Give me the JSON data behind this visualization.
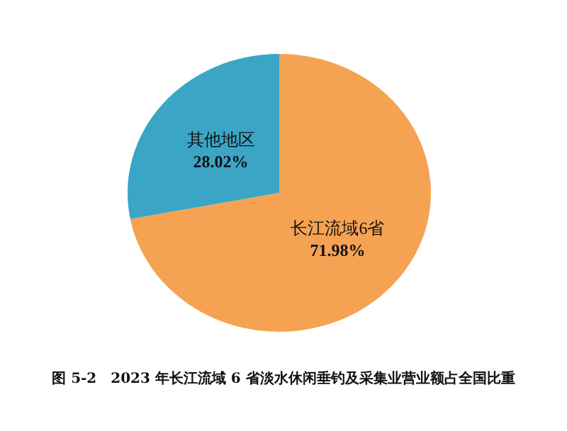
{
  "chart_data": {
    "type": "pie",
    "title": "图 5-2　2023 年长江流域 6 省淡水休闲垂钓及采集业营业额占全国比重",
    "categories": [
      "长江流域6省",
      "其他地区"
    ],
    "values": [
      71.98,
      28.02
    ],
    "value_labels": [
      "71.98%",
      "28.02%"
    ],
    "colors": [
      "#f5a252",
      "#3ba5c6"
    ]
  }
}
